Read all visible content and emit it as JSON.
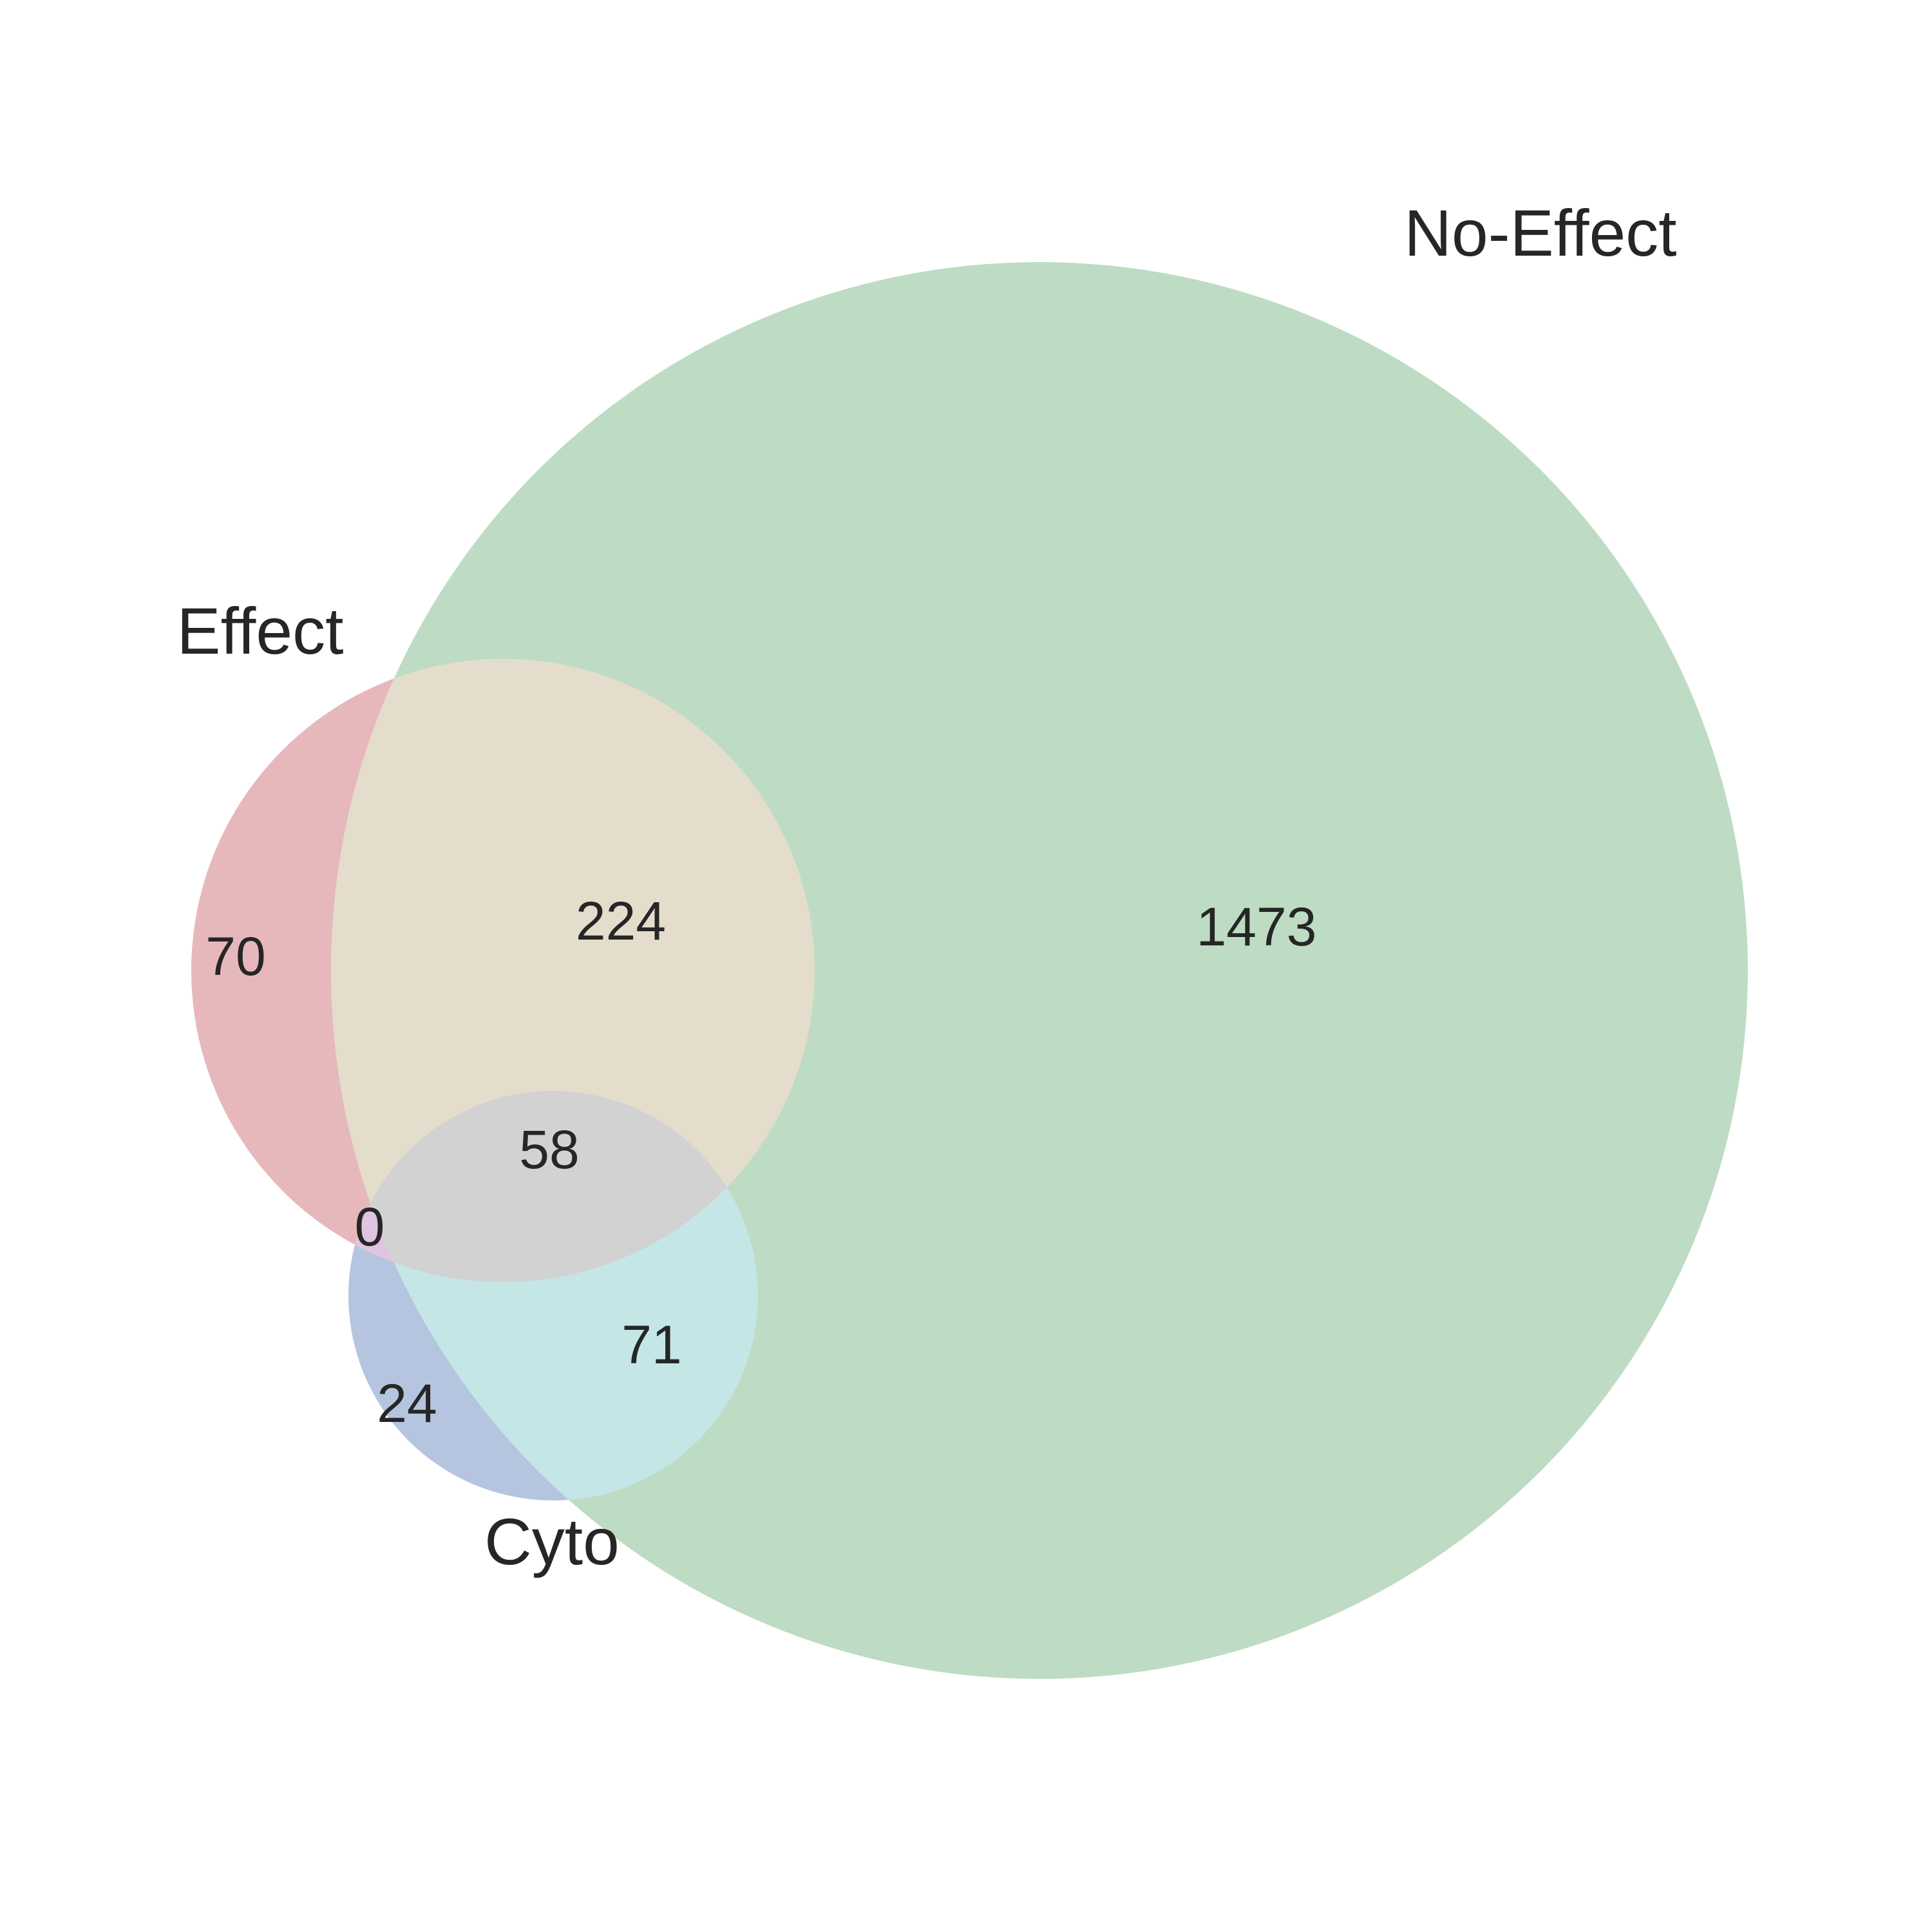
{
  "venn": {
    "sets": [
      {
        "id": "effect",
        "label": "Effect",
        "color": "#d98c93"
      },
      {
        "id": "no_effect",
        "label": "No-Effect",
        "color": "#a6d1ad"
      },
      {
        "id": "cyto",
        "label": "Cyto",
        "color": "#95a8cc"
      }
    ],
    "regions": {
      "effect_only": "70",
      "effect_no_effect": "224",
      "no_effect_only": "1473",
      "effect_no_effect_cyto": "58",
      "effect_cyto": "0",
      "cyto_only": "24",
      "no_effect_cyto": "71"
    },
    "region_colors": {
      "effect_only": "#e7b8bb",
      "effect_no_effect": "#e5ddcc",
      "no_effect_only": "#bddcc3",
      "effect_no_effect_cyto": "#d2d2d2",
      "effect_cyto": "#e0c4e0",
      "cyto_only": "#b5c5df",
      "no_effect_cyto": "#c5e6e6"
    }
  }
}
